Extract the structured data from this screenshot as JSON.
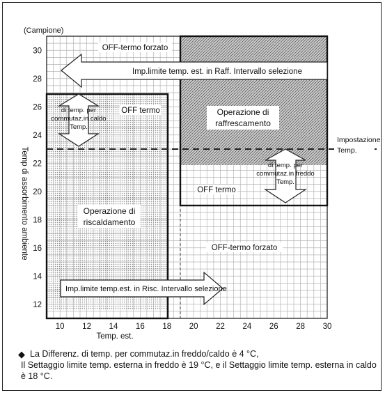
{
  "sample_label": "(Campione)",
  "y_axis_label": "Temp di assorbimento ambiente",
  "x_axis_label": "Temp. est.",
  "x_ticks": [
    "10",
    "12",
    "14",
    "16",
    "18",
    "20",
    "22",
    "24",
    "26",
    "28",
    "30"
  ],
  "y_ticks": [
    "12",
    "14",
    "16",
    "18",
    "20",
    "22",
    "24",
    "26",
    "28",
    "30"
  ],
  "labels": {
    "off_forced_top": "OFF-termo forzato",
    "cool_limit_arrow": "Imp.limite temp. est. in Raff. Intervallo selezione",
    "heat_switch_diff": [
      "di temp. per",
      "commutaz.in caldo",
      "Temp."
    ],
    "off_termo_left": "OFF termo",
    "cooling_operation": [
      "Operazione di",
      "raffrescamento"
    ],
    "setting_temp": [
      "Impostazione",
      "Temp."
    ],
    "cool_switch_diff": [
      "di temp. per",
      "commutaz.in freddo",
      "Temp."
    ],
    "off_termo_right": "OFF termo",
    "heating_operation": [
      "Operazione di",
      "riscaldamento"
    ],
    "off_forced_bottom": "OFF-termo forzato",
    "heat_limit_arrow": "Imp.limite temp.est. in Risc. Intervallo selezione"
  },
  "note": {
    "line1": "La Differenz. di temp. per commutaz.in freddo/caldo è 4 °C,",
    "line2": "Il Settaggio limite temp. esterna in freddo è 19 °C, e il Settaggio limite temp. esterna in caldo è 18 °C."
  }
}
